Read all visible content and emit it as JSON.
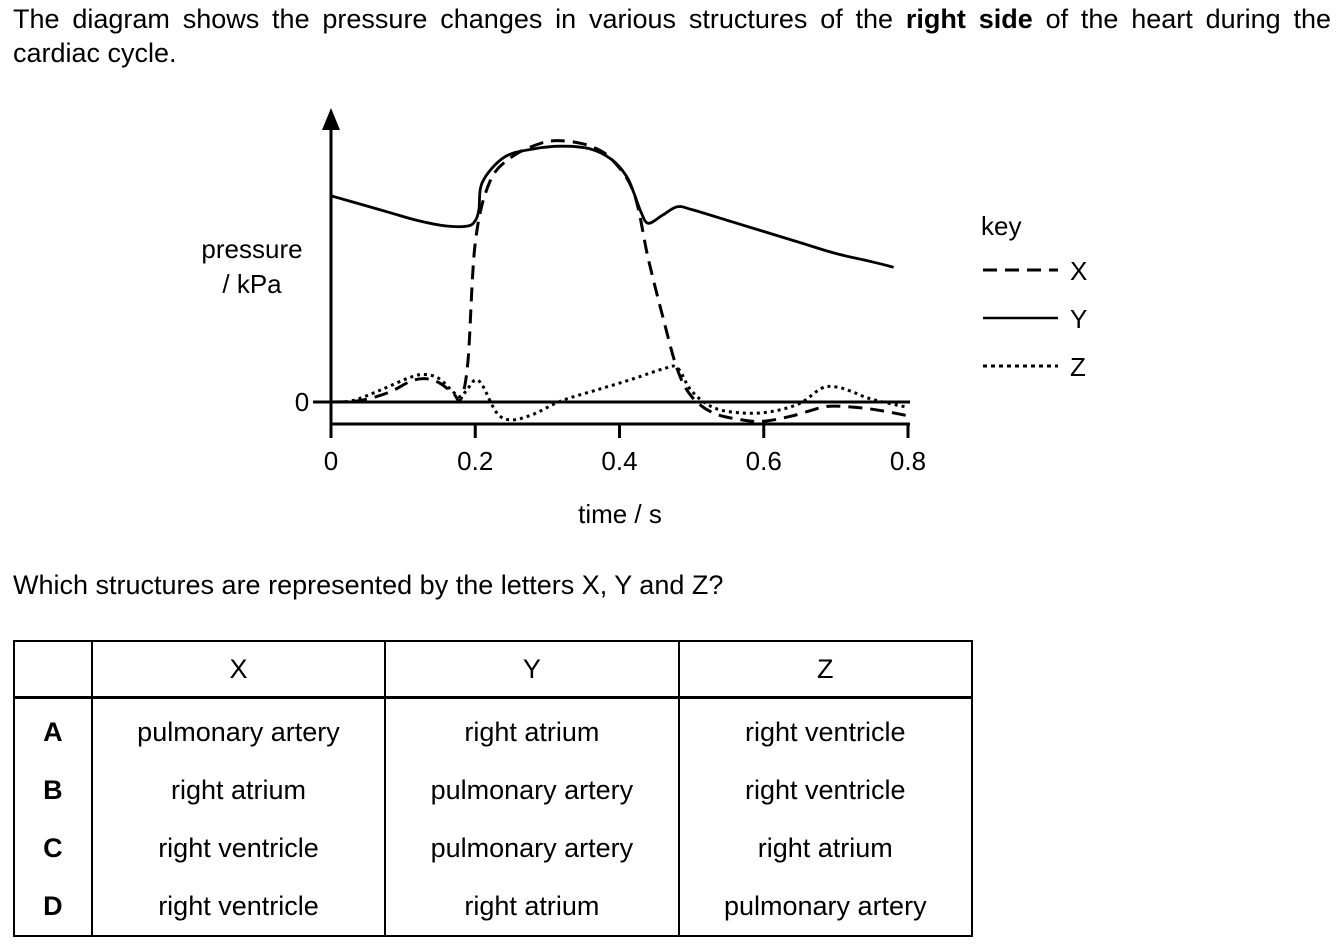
{
  "intro": {
    "part1": "The diagram shows the pressure changes in various structures of the ",
    "bold": "right side",
    "part2": " of the heart during the cardiac cycle."
  },
  "chart_data": {
    "type": "line",
    "xlabel": "time / s",
    "ylabel": "pressure / kPa",
    "xlim": [
      0,
      0.8
    ],
    "x_ticks": [
      "0",
      "0.2",
      "0.4",
      "0.6",
      "0.8"
    ],
    "y_ticks": [
      "0"
    ],
    "legend_title": "key",
    "legend_position": "right",
    "series": [
      {
        "name": "X",
        "style": "dashed",
        "x": [
          0,
          0.04,
          0.08,
          0.11,
          0.13,
          0.15,
          0.17,
          0.18,
          0.19,
          0.2,
          0.22,
          0.25,
          0.29,
          0.32,
          0.36,
          0.39,
          0.42,
          0.44,
          0.46,
          0.48,
          0.5,
          0.53,
          0.57,
          0.6,
          0.64,
          0.68,
          0.7,
          0.73,
          0.76,
          0.8
        ],
        "y": [
          0,
          0.05,
          0.35,
          0.75,
          0.85,
          0.7,
          0.3,
          0.1,
          1.5,
          5.8,
          8.0,
          8.9,
          9.4,
          9.5,
          9.3,
          8.8,
          7.6,
          5.2,
          3.1,
          1.2,
          0.2,
          -0.4,
          -0.65,
          -0.7,
          -0.5,
          -0.2,
          -0.15,
          -0.2,
          -0.3,
          -0.5
        ]
      },
      {
        "name": "Y",
        "style": "solid",
        "x": [
          0,
          0.04,
          0.08,
          0.12,
          0.16,
          0.19,
          0.2,
          0.205,
          0.21,
          0.24,
          0.28,
          0.32,
          0.36,
          0.39,
          0.41,
          0.42,
          0.43,
          0.44,
          0.46,
          0.48,
          0.5,
          0.55,
          0.6,
          0.65,
          0.7,
          0.75,
          0.78
        ],
        "y": [
          7.5,
          7.2,
          6.9,
          6.6,
          6.4,
          6.4,
          6.6,
          7.0,
          8.0,
          8.9,
          9.2,
          9.3,
          9.2,
          8.8,
          8.2,
          7.6,
          6.9,
          6.5,
          6.8,
          7.1,
          7.0,
          6.6,
          6.2,
          5.8,
          5.4,
          5.1,
          4.9
        ]
      },
      {
        "name": "Z",
        "style": "dotted",
        "x": [
          0,
          0.03,
          0.07,
          0.11,
          0.13,
          0.15,
          0.17,
          0.18,
          0.19,
          0.2,
          0.21,
          0.23,
          0.25,
          0.28,
          0.32,
          0.37,
          0.42,
          0.46,
          0.48,
          0.5,
          0.53,
          0.57,
          0.61,
          0.65,
          0.68,
          0.7,
          0.72,
          0.75,
          0.8
        ],
        "y": [
          0,
          0.05,
          0.45,
          0.9,
          1.0,
          0.85,
          0.35,
          0.2,
          0.5,
          0.8,
          0.6,
          -0.4,
          -0.65,
          -0.45,
          0.05,
          0.45,
          0.85,
          1.2,
          1.25,
          0.4,
          -0.2,
          -0.4,
          -0.35,
          -0.05,
          0.5,
          0.55,
          0.4,
          0.1,
          -0.2
        ]
      }
    ]
  },
  "question": "Which structures are represented by the letters X, Y and Z?",
  "table": {
    "headers": [
      "",
      "X",
      "Y",
      "Z"
    ],
    "rows": [
      {
        "letter": "A",
        "x": "pulmonary artery",
        "y": "right atrium",
        "z": "right ventricle"
      },
      {
        "letter": "B",
        "x": "right atrium",
        "y": "pulmonary artery",
        "z": "right ventricle"
      },
      {
        "letter": "C",
        "x": "right ventricle",
        "y": "pulmonary artery",
        "z": "right atrium"
      },
      {
        "letter": "D",
        "x": "right ventricle",
        "y": "right atrium",
        "z": "pulmonary artery"
      }
    ]
  }
}
